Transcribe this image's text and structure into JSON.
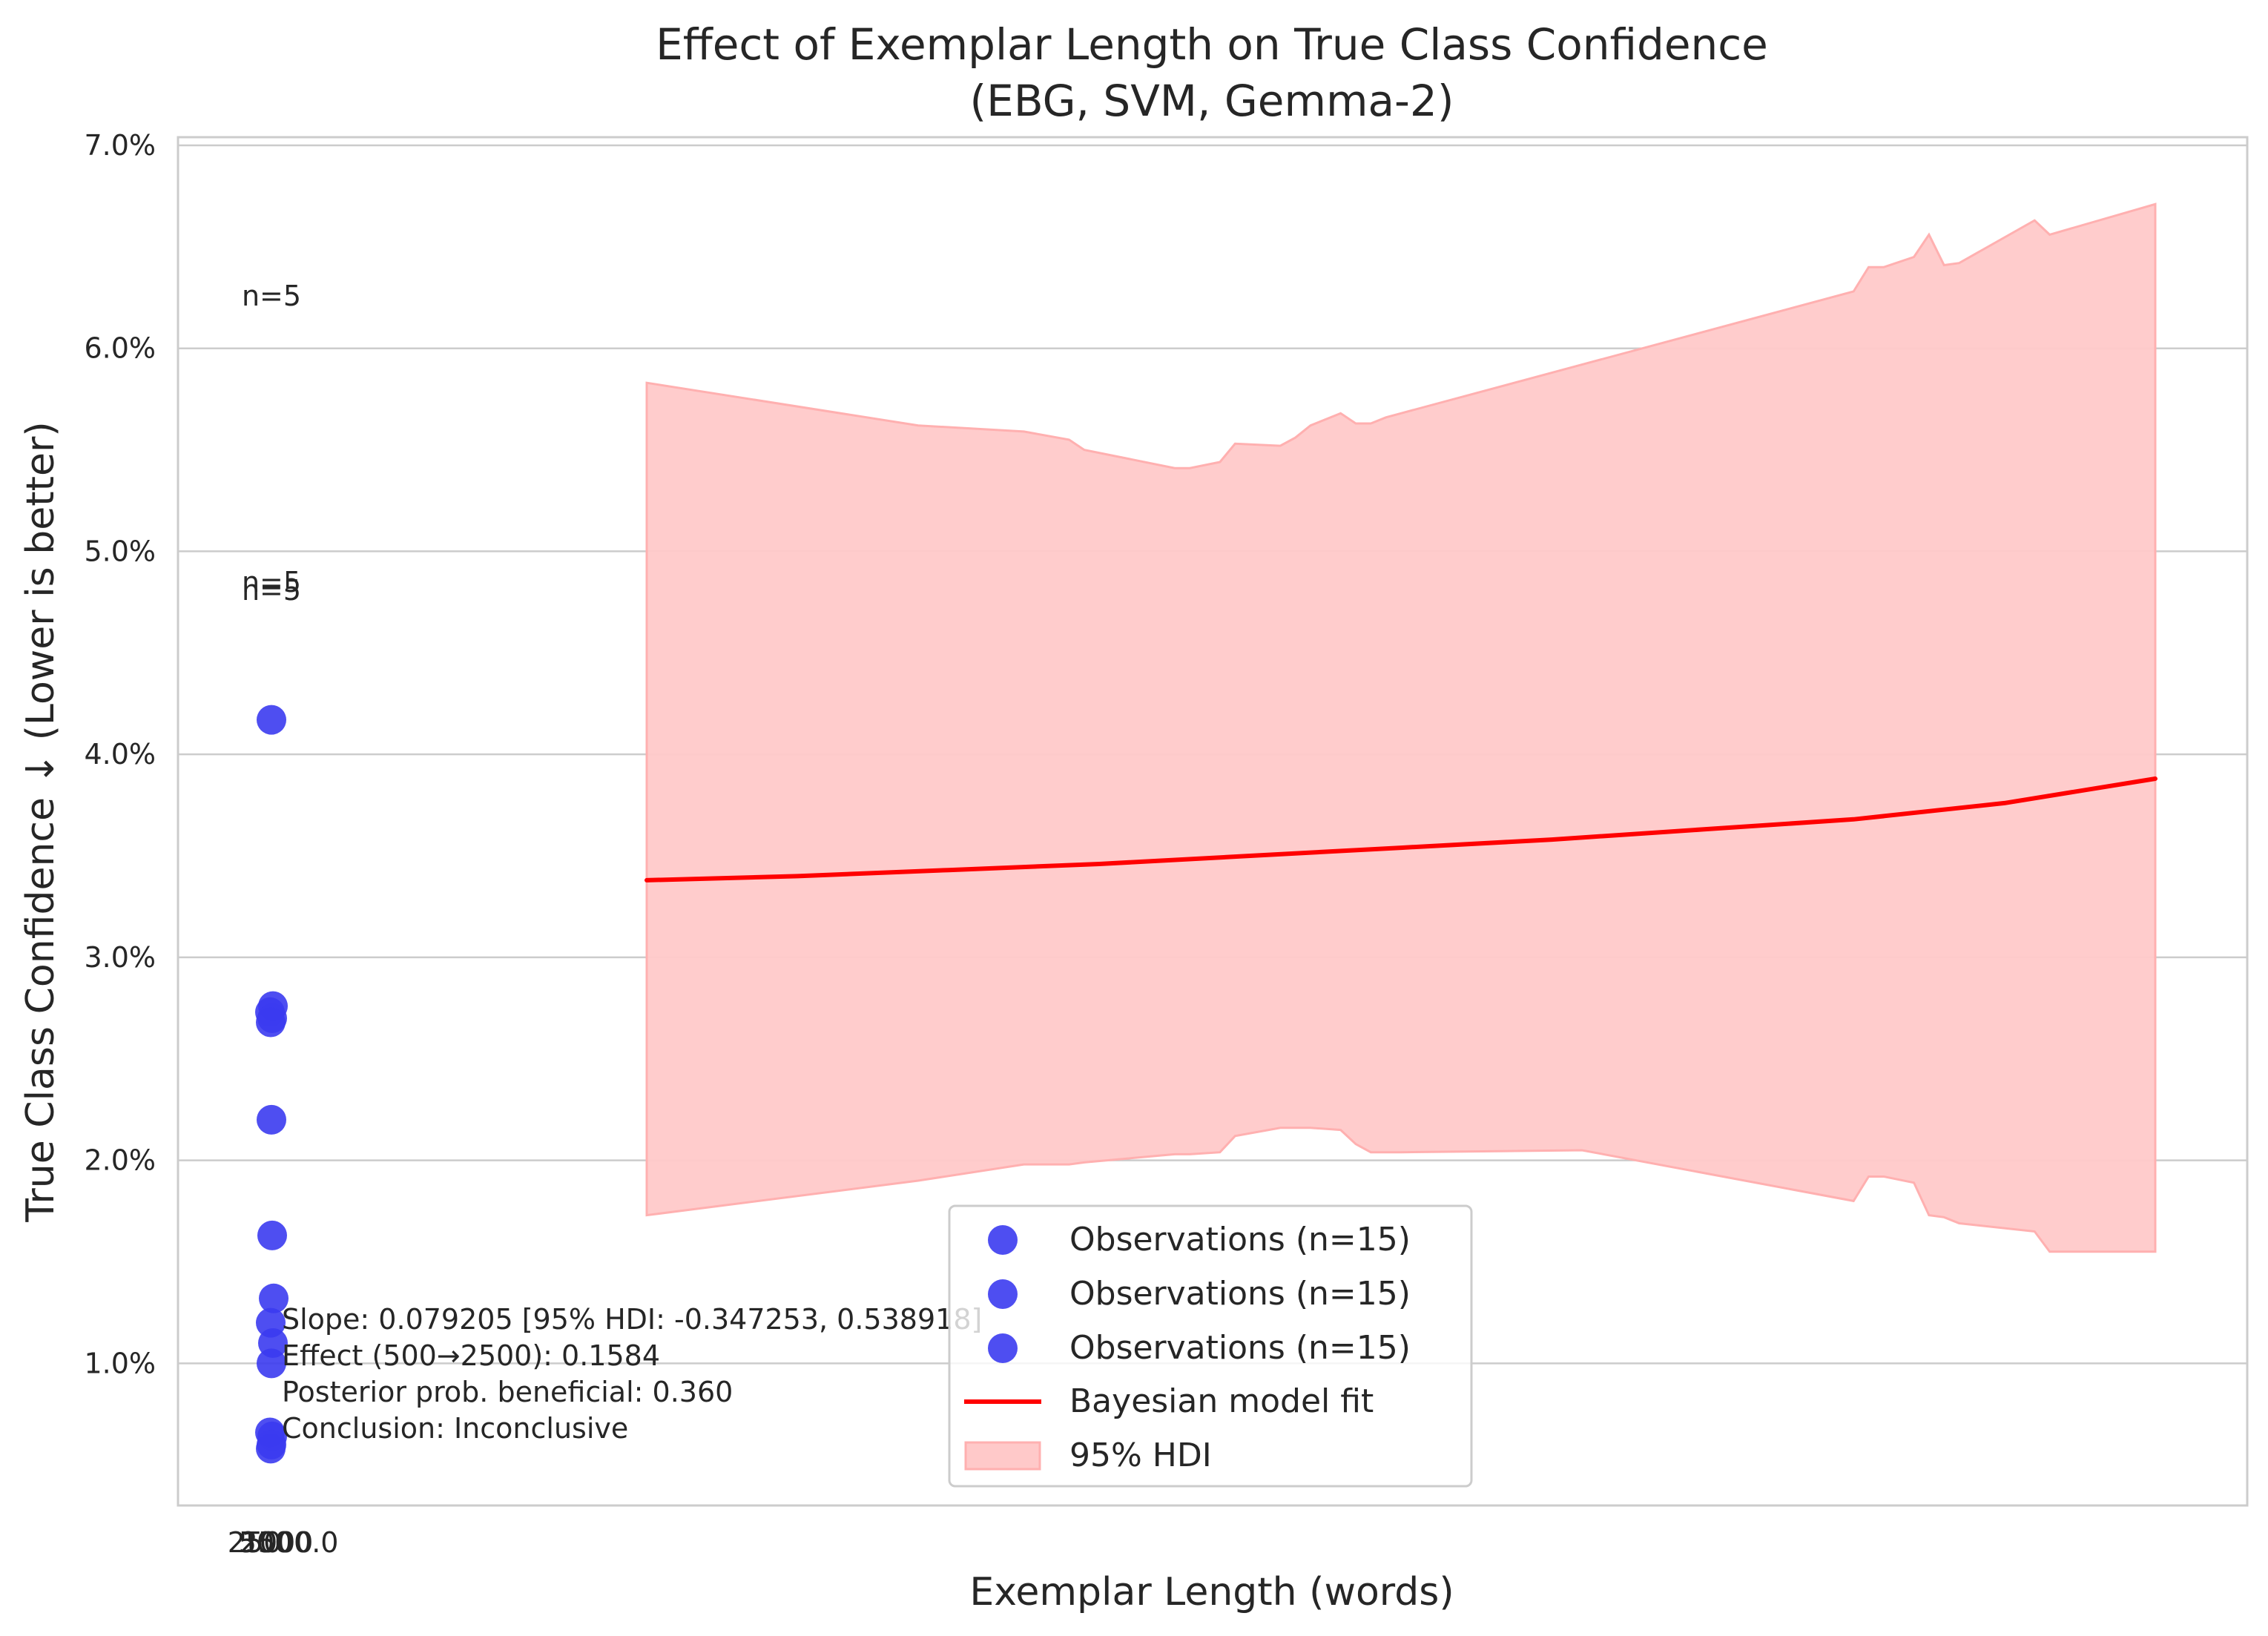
{
  "chart_data": {
    "type": "scatter",
    "title": "Effect of Exemplar Length on True Class Confidence",
    "subtitle": "(EBG, SVM, Gemma-2)",
    "xlabel": "Exemplar Length (words)",
    "ylabel": "True Class Confidence ↓ (Lower is better)",
    "ylim": [
      0.003,
      0.0704
    ],
    "y_ticks": [
      {
        "value": 0.01,
        "label": "1.0%"
      },
      {
        "value": 0.02,
        "label": "2.0%"
      },
      {
        "value": 0.03,
        "label": "3.0%"
      },
      {
        "value": 0.04,
        "label": "4.0%"
      },
      {
        "value": 0.05,
        "label": "5.0%"
      },
      {
        "value": 0.06,
        "label": "6.0%"
      },
      {
        "value": 0.07,
        "label": "7.0%"
      }
    ],
    "x_tick_labels": [
      "250",
      "500",
      "1000",
      "2500.0"
    ],
    "grid": "horizontal",
    "legend_position": "lower-center",
    "colors": {
      "observations": "#3b3bf0",
      "fit": "#ff0000",
      "hdi": "#ffc9c9",
      "hdi_edge": "#ffb0b0"
    },
    "observations": {
      "name": "Observations (n=15)",
      "x": [
        500,
        500,
        500,
        500,
        500,
        500,
        500,
        500,
        500,
        500,
        500,
        500,
        500,
        500,
        500
      ],
      "y": [
        0.0417,
        0.0276,
        0.0273,
        0.027,
        0.0268,
        0.022,
        0.0163,
        0.0132,
        0.012,
        0.011,
        0.01,
        0.0066,
        0.0064,
        0.006,
        0.0058
      ]
    },
    "fit": {
      "name": "Bayesian model fit",
      "t": [
        0,
        0.1,
        0.2,
        0.3,
        0.4,
        0.5,
        0.6,
        0.7,
        0.8,
        0.9,
        1.0
      ],
      "y": [
        0.0338,
        0.034,
        0.0343,
        0.0346,
        0.035,
        0.0354,
        0.0358,
        0.0363,
        0.0368,
        0.0376,
        0.0388
      ]
    },
    "hdi": {
      "name": "95% HDI",
      "t": [
        0,
        0.18,
        0.25,
        0.28,
        0.29,
        0.35,
        0.36,
        0.38,
        0.39,
        0.42,
        0.43,
        0.44,
        0.46,
        0.47,
        0.48,
        0.49,
        0.5,
        0.62,
        0.8,
        0.81,
        0.82,
        0.84,
        0.85,
        0.86,
        0.87,
        0.92,
        0.93,
        1.0
      ],
      "upper": [
        0.0583,
        0.0562,
        0.0559,
        0.0555,
        0.055,
        0.0541,
        0.0541,
        0.0544,
        0.0553,
        0.0552,
        0.0556,
        0.0562,
        0.0568,
        0.0563,
        0.0563,
        0.0566,
        0.0568,
        0.0592,
        0.0628,
        0.064,
        0.064,
        0.0645,
        0.0656,
        0.0641,
        0.0642,
        0.0663,
        0.0656,
        0.0671
      ],
      "lower": [
        0.0173,
        0.019,
        0.0198,
        0.0198,
        0.0199,
        0.0203,
        0.0203,
        0.0204,
        0.0212,
        0.0216,
        0.0216,
        0.0216,
        0.0215,
        0.0208,
        0.0204,
        0.0204,
        0.0204,
        0.0205,
        0.018,
        0.0192,
        0.0192,
        0.0189,
        0.0173,
        0.0172,
        0.0169,
        0.0165,
        0.0155,
        0.0155
      ]
    },
    "sample_annotations": [
      {
        "text": "n=5",
        "y": 0.0621
      },
      {
        "text": "n=5",
        "y": 0.048
      },
      {
        "text": "n=5",
        "y": 0.0476
      }
    ],
    "stats_text": [
      "Slope: 0.079205 [95% HDI: -0.347253, 0.538918]",
      "Effect (500→2500): 0.1584",
      "Posterior prob. beneficial: 0.360",
      "Conclusion: Inconclusive"
    ],
    "legend": [
      {
        "label": "Observations (n=15)",
        "kind": "marker"
      },
      {
        "label": "Observations (n=15)",
        "kind": "marker"
      },
      {
        "label": "Observations (n=15)",
        "kind": "marker"
      },
      {
        "label": "Bayesian model fit",
        "kind": "line"
      },
      {
        "label": "95% HDI",
        "kind": "patch"
      }
    ]
  }
}
